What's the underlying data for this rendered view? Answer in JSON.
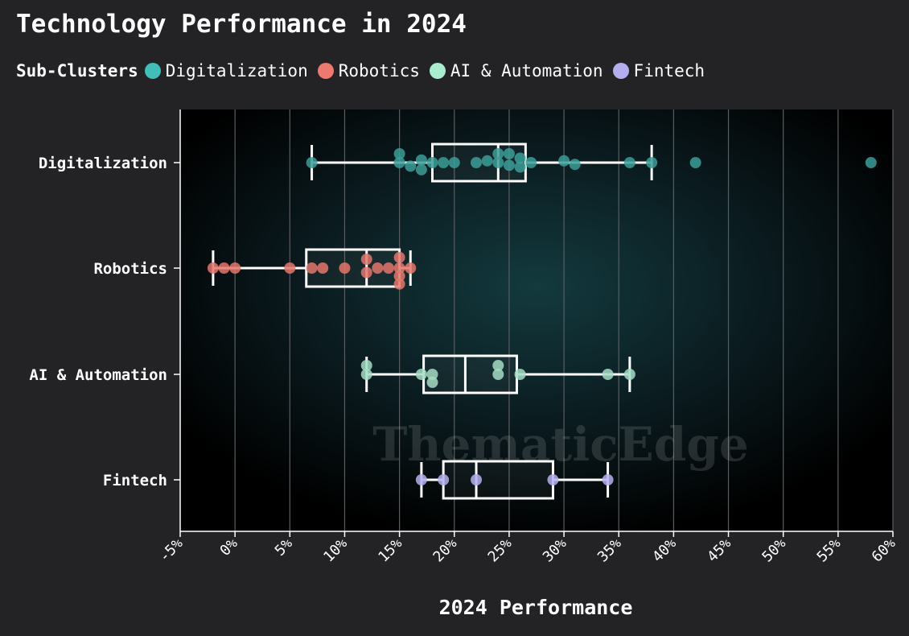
{
  "chart_data": {
    "type": "box",
    "title": "Technology Performance in 2024",
    "xlabel": "2024 Performance",
    "ylabel": "",
    "xlim": [
      -5,
      60
    ],
    "x_ticks": [
      -5,
      0,
      5,
      10,
      15,
      20,
      25,
      30,
      35,
      40,
      45,
      50,
      55,
      60
    ],
    "x_tick_labels": [
      "-5%",
      "0%",
      "5%",
      "10%",
      "15%",
      "20%",
      "25%",
      "30%",
      "35%",
      "40%",
      "45%",
      "50%",
      "55%",
      "60%"
    ],
    "grid": "vertical",
    "legend": {
      "title": "Sub-Clusters",
      "placement": "top-left",
      "items": [
        {
          "name": "Digitalization",
          "color": "#3fbfb7"
        },
        {
          "name": "Robotics",
          "color": "#ee7a6d"
        },
        {
          "name": "AI & Automation",
          "color": "#a9ecd0"
        },
        {
          "name": "Fintech",
          "color": "#b4aef0"
        }
      ]
    },
    "watermark": "ThematicEdge",
    "categories": [
      "Digitalization",
      "Robotics",
      "AI & Automation",
      "Fintech"
    ],
    "series": [
      {
        "name": "Digitalization",
        "color": "#3a9e98",
        "box": {
          "whisker_low": 7,
          "q1": 18,
          "median": 24,
          "q3": 26.5,
          "whisker_high": 38
        },
        "points": [
          [
            7,
            0
          ],
          [
            15,
            -1
          ],
          [
            15,
            0
          ],
          [
            16,
            0.4
          ],
          [
            17,
            -0.3
          ],
          [
            17,
            0.8
          ],
          [
            18,
            0
          ],
          [
            19,
            0
          ],
          [
            20,
            0
          ],
          [
            22,
            0
          ],
          [
            23,
            -0.2
          ],
          [
            24,
            -1
          ],
          [
            24,
            0
          ],
          [
            25,
            -1
          ],
          [
            25,
            0.3
          ],
          [
            26,
            -0.5
          ],
          [
            26,
            0.5
          ],
          [
            27,
            0
          ],
          [
            30,
            -0.2
          ],
          [
            31,
            0.2
          ],
          [
            36,
            0
          ],
          [
            38,
            0
          ],
          [
            42,
            0
          ],
          [
            58,
            0
          ]
        ]
      },
      {
        "name": "Robotics",
        "color": "#e4756b",
        "box": {
          "whisker_low": -2,
          "q1": 6.5,
          "median": 12,
          "q3": 15,
          "whisker_high": 16
        },
        "points": [
          [
            -2,
            0
          ],
          [
            -1,
            0
          ],
          [
            0,
            0
          ],
          [
            5,
            0
          ],
          [
            7,
            0
          ],
          [
            8,
            0
          ],
          [
            10,
            0
          ],
          [
            12,
            -1
          ],
          [
            12,
            0.5
          ],
          [
            13,
            0
          ],
          [
            14,
            0
          ],
          [
            15,
            -1.2
          ],
          [
            15,
            0
          ],
          [
            15,
            0.9
          ],
          [
            15,
            1.8
          ],
          [
            16,
            0
          ]
        ]
      },
      {
        "name": "AI & Automation",
        "color": "#a5dcc4",
        "box": {
          "whisker_low": 12,
          "q1": 17.2,
          "median": 21,
          "q3": 25.7,
          "whisker_high": 36
        },
        "points": [
          [
            12,
            -1
          ],
          [
            12,
            0
          ],
          [
            17,
            0
          ],
          [
            18,
            0
          ],
          [
            18,
            0.9
          ],
          [
            24,
            -1
          ],
          [
            24,
            0
          ],
          [
            26,
            0
          ],
          [
            34,
            0
          ],
          [
            36,
            0
          ]
        ]
      },
      {
        "name": "Fintech",
        "color": "#b4aef0",
        "box": {
          "whisker_low": 17,
          "q1": 19,
          "median": 22,
          "q3": 29,
          "whisker_high": 34
        },
        "points": [
          [
            17,
            0
          ],
          [
            19,
            0
          ],
          [
            22,
            0
          ],
          [
            29,
            0
          ],
          [
            34,
            0
          ]
        ]
      }
    ]
  }
}
